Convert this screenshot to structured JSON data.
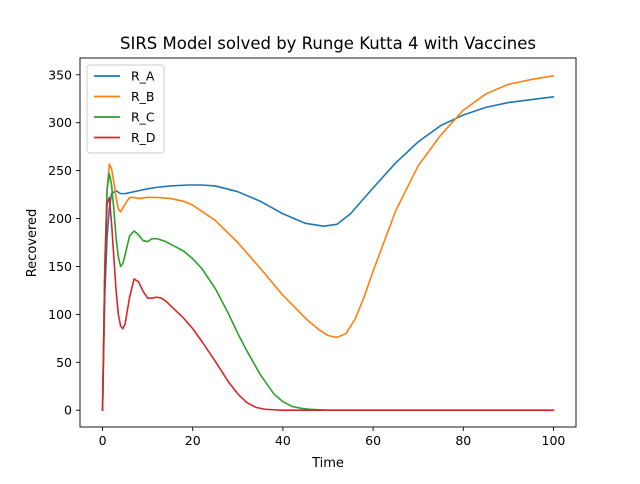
{
  "chart_data": {
    "type": "line",
    "title": "SIRS Model solved by Runge Kutta 4 with Vaccines",
    "xlabel": "Time",
    "ylabel": "Recovered",
    "xlim": [
      -5,
      105
    ],
    "ylim": [
      -17.5,
      367.5
    ],
    "x_ticks": [
      0,
      20,
      40,
      60,
      80,
      100
    ],
    "y_ticks": [
      0,
      50,
      100,
      150,
      200,
      250,
      300,
      350
    ],
    "grid": false,
    "legend_position": "upper-left",
    "series": [
      {
        "name": "R_A",
        "color": "#1f77b4",
        "x": [
          0,
          0.5,
          1,
          1.5,
          2,
          3,
          4,
          5,
          6,
          8,
          10,
          12,
          15,
          19,
          22,
          25,
          30,
          35,
          40,
          45,
          49,
          52,
          55,
          60,
          65,
          70,
          75,
          80,
          85,
          90,
          95,
          100
        ],
        "y": [
          0,
          120,
          180,
          210,
          226,
          229,
          226,
          226,
          227,
          229,
          231,
          232.5,
          234,
          235,
          235,
          234,
          228,
          218,
          205,
          195,
          192,
          194,
          205,
          232,
          258,
          280,
          297,
          308,
          316,
          321,
          324,
          327
        ]
      },
      {
        "name": "R_B",
        "color": "#ff7f0e",
        "x": [
          0,
          0.5,
          1,
          1.5,
          2,
          2.5,
          3,
          3.5,
          4,
          5,
          6,
          7,
          8,
          10,
          12,
          15,
          18,
          20,
          25,
          30,
          35,
          40,
          45,
          48,
          50,
          52,
          54,
          56,
          58,
          60,
          65,
          70,
          75,
          80,
          85,
          90,
          95,
          100
        ],
        "y": [
          0,
          150,
          230,
          257,
          252,
          238,
          222,
          210,
          207,
          215,
          222,
          222,
          221,
          222,
          222,
          221,
          218,
          214,
          198,
          175,
          148,
          120,
          96,
          84,
          78,
          76,
          80,
          95,
          118,
          145,
          208,
          255,
          287,
          313,
          330,
          340,
          345,
          349
        ]
      },
      {
        "name": "R_C",
        "color": "#2ca02c",
        "x": [
          0,
          0.5,
          1,
          1.5,
          2,
          2.5,
          3,
          3.5,
          4,
          4.5,
          5,
          6,
          7,
          8,
          9,
          10,
          11,
          12,
          14,
          16,
          18,
          20,
          22,
          25,
          28,
          30,
          32,
          35,
          38,
          40,
          42,
          44,
          46,
          48,
          50,
          55,
          60,
          70,
          80,
          90,
          100
        ],
        "y": [
          0,
          150,
          230,
          247,
          235,
          210,
          180,
          160,
          150,
          153,
          162,
          182,
          187,
          183,
          177,
          176,
          179,
          179,
          176,
          171,
          166,
          158,
          148,
          127,
          100,
          80,
          62,
          37,
          17,
          9,
          4,
          2,
          1,
          0.5,
          0,
          0,
          0,
          0,
          0,
          0,
          0
        ]
      },
      {
        "name": "R_D",
        "color": "#d62728",
        "x": [
          0,
          0.5,
          1,
          1.5,
          2,
          2.5,
          3,
          3.5,
          4,
          4.5,
          5,
          6,
          7,
          8,
          9,
          10,
          11,
          12,
          13,
          14,
          16,
          18,
          20,
          22,
          25,
          28,
          30,
          32,
          34,
          36,
          38,
          40,
          45,
          50,
          60,
          70,
          80,
          90,
          100
        ],
        "y": [
          0,
          140,
          215,
          222,
          195,
          160,
          125,
          100,
          88,
          85,
          90,
          118,
          137,
          134,
          124,
          117,
          117,
          118,
          117,
          114,
          105,
          96,
          85,
          72,
          51,
          29,
          17,
          8,
          3,
          1,
          0.5,
          0,
          0,
          0,
          0,
          0,
          0,
          0,
          0
        ]
      }
    ]
  }
}
